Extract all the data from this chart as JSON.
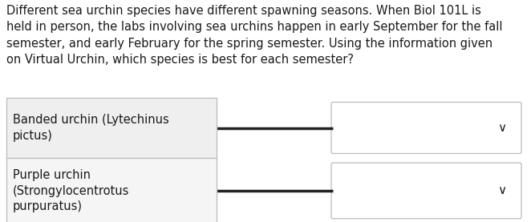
{
  "background_color": "#ffffff",
  "paragraph": "Different sea urchin species have different spawning seasons. When Biol 101L is\nheld in person, the labs involving sea urchins happen in early September for the fall\nsemester, and early February for the spring semester. Using the information given\non Virtual Urchin, which species is best for each semester?",
  "paragraph_fontsize": 10.5,
  "paragraph_color": "#1a1a1a",
  "rows": [
    {
      "label": "Banded urchin (Lytechinus\npictus)",
      "label_bg": "#efefef",
      "dropdown_bg": "#ffffff",
      "chevron": "∨"
    },
    {
      "label": "Purple urchin\n(Strongylocentrotus\npurpuratus)",
      "label_bg": "#f5f5f5",
      "dropdown_bg": "#ffffff",
      "chevron": "∨"
    }
  ],
  "border_color": "#bbbbbb",
  "line_color": "#222222",
  "label_fontsize": 10.5,
  "chevron_fontsize": 11,
  "fig_width": 6.62,
  "fig_height": 2.77,
  "dpi": 100
}
